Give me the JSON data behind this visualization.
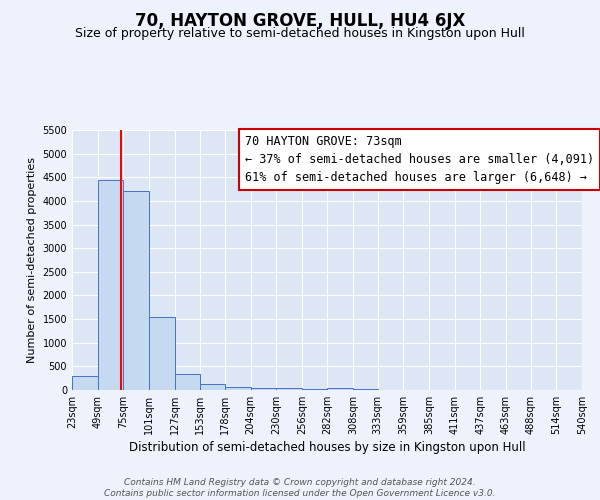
{
  "title": "70, HAYTON GROVE, HULL, HU4 6JX",
  "subtitle": "Size of property relative to semi-detached houses in Kingston upon Hull",
  "xlabel": "Distribution of semi-detached houses by size in Kingston upon Hull",
  "ylabel": "Number of semi-detached properties",
  "footer_line1": "Contains HM Land Registry data © Crown copyright and database right 2024.",
  "footer_line2": "Contains public sector information licensed under the Open Government Licence v3.0.",
  "annotation_title": "70 HAYTON GROVE: 73sqm",
  "annotation_line1": "← 37% of semi-detached houses are smaller (4,091)",
  "annotation_line2": "61% of semi-detached houses are larger (6,648) →",
  "bar_edges": [
    23,
    49,
    75,
    101,
    127,
    153,
    178,
    204,
    230,
    256,
    282,
    308,
    333,
    359,
    385,
    411,
    437,
    463,
    488,
    514,
    540
  ],
  "bar_heights": [
    300,
    4450,
    4200,
    1550,
    330,
    130,
    70,
    50,
    50,
    20,
    50,
    30,
    0,
    0,
    0,
    0,
    0,
    0,
    0,
    0
  ],
  "bar_color": "#c5d9f1",
  "bar_edge_color": "#4472c4",
  "vline_x": 73,
  "vline_color": "#ff0000",
  "ylim": [
    0,
    5500
  ],
  "yticks": [
    0,
    500,
    1000,
    1500,
    2000,
    2500,
    3000,
    3500,
    4000,
    4500,
    5000,
    5500
  ],
  "bg_color": "#edf2fc",
  "plot_bg_color": "#dce6f5",
  "grid_color": "#ffffff",
  "annotation_box_color": "#ffffff",
  "annotation_box_edge": "#cc0000",
  "title_fontsize": 12,
  "subtitle_fontsize": 9,
  "xlabel_fontsize": 8.5,
  "ylabel_fontsize": 8,
  "tick_fontsize": 7,
  "annotation_fontsize": 8.5,
  "footer_fontsize": 6.5
}
